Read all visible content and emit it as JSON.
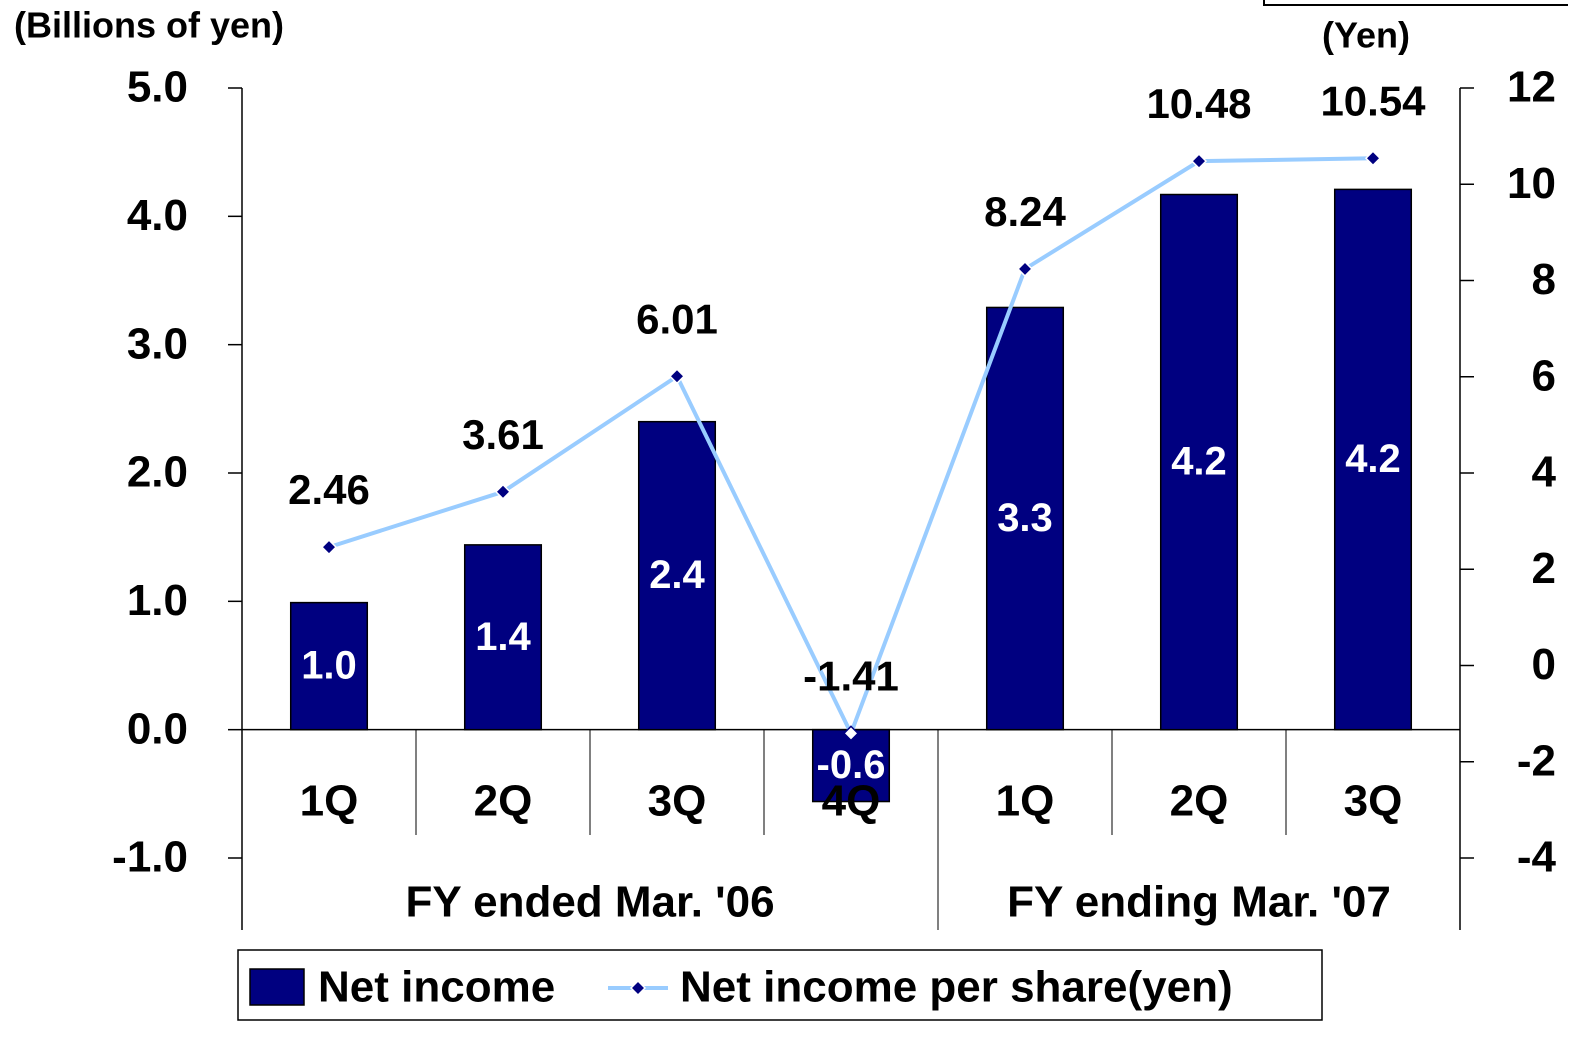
{
  "chart_data": {
    "type": "bar_line",
    "y_label": "(Billions of yen)",
    "y2_label": "(Yen)",
    "categories": [
      "1Q",
      "2Q",
      "3Q",
      "4Q",
      "1Q",
      "2Q",
      "3Q"
    ],
    "groups": [
      {
        "label": "FY ended Mar. '06",
        "size": 4
      },
      {
        "label": "FY ending Mar. '07",
        "size": 3
      }
    ],
    "series": [
      {
        "name": "Net income",
        "type": "bar",
        "color": "#000080",
        "values": [
          0.99,
          1.44,
          2.4,
          -0.56,
          3.29,
          4.17,
          4.21
        ],
        "value_labels": [
          "1.0",
          "1.4",
          "2.4",
          "-0.6",
          "3.3",
          "4.2",
          "4.2"
        ]
      },
      {
        "name": "Net income per share(yen)",
        "type": "line",
        "axis": "y2",
        "color": "#99ccff",
        "marker_color": "#000080",
        "values": [
          2.46,
          3.61,
          6.01,
          -1.41,
          8.24,
          10.48,
          10.54
        ]
      }
    ],
    "ylim": [
      -1,
      5
    ],
    "yticks": [
      {
        "value": -1,
        "label": "-1.0"
      },
      {
        "value": 0,
        "label": "0.0"
      },
      {
        "value": 1,
        "label": "1.0"
      },
      {
        "value": 2,
        "label": "2.0"
      },
      {
        "value": 3,
        "label": "3.0"
      },
      {
        "value": 4,
        "label": "4.0"
      },
      {
        "value": 5,
        "label": "5.0"
      }
    ],
    "y2lim": [
      -4,
      12
    ],
    "y2ticks": [
      -4,
      -2,
      0,
      2,
      4,
      6,
      8,
      10,
      12
    ],
    "legend": "bottom"
  }
}
